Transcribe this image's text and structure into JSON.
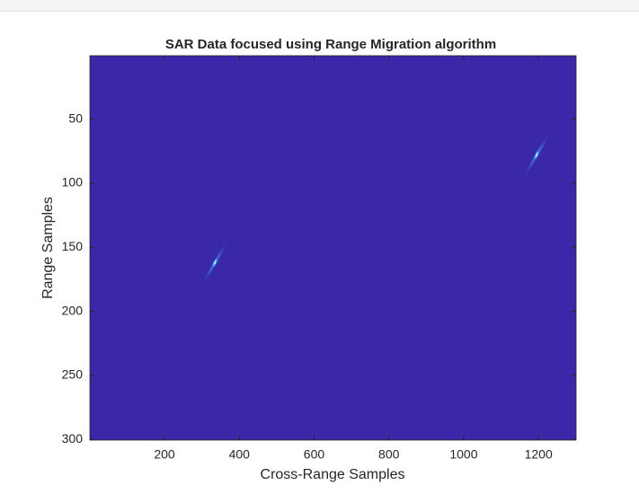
{
  "chart_data": {
    "type": "image",
    "title": "SAR Data focused using Range Migration algorithm",
    "xlabel": "Cross-Range Samples",
    "ylabel": "Range Samples",
    "xlim": [
      0.5,
      1300.5
    ],
    "ylim": [
      0.5,
      300.5
    ],
    "ydir": "reverse",
    "xticks": [
      200,
      400,
      600,
      800,
      1000,
      1200
    ],
    "yticks": [
      50,
      100,
      150,
      200,
      250,
      300
    ],
    "background": "#3a28a8",
    "points": {
      "x": [
        335,
        1195
      ],
      "y": [
        162,
        78
      ],
      "color": "#5fe8ff"
    }
  }
}
